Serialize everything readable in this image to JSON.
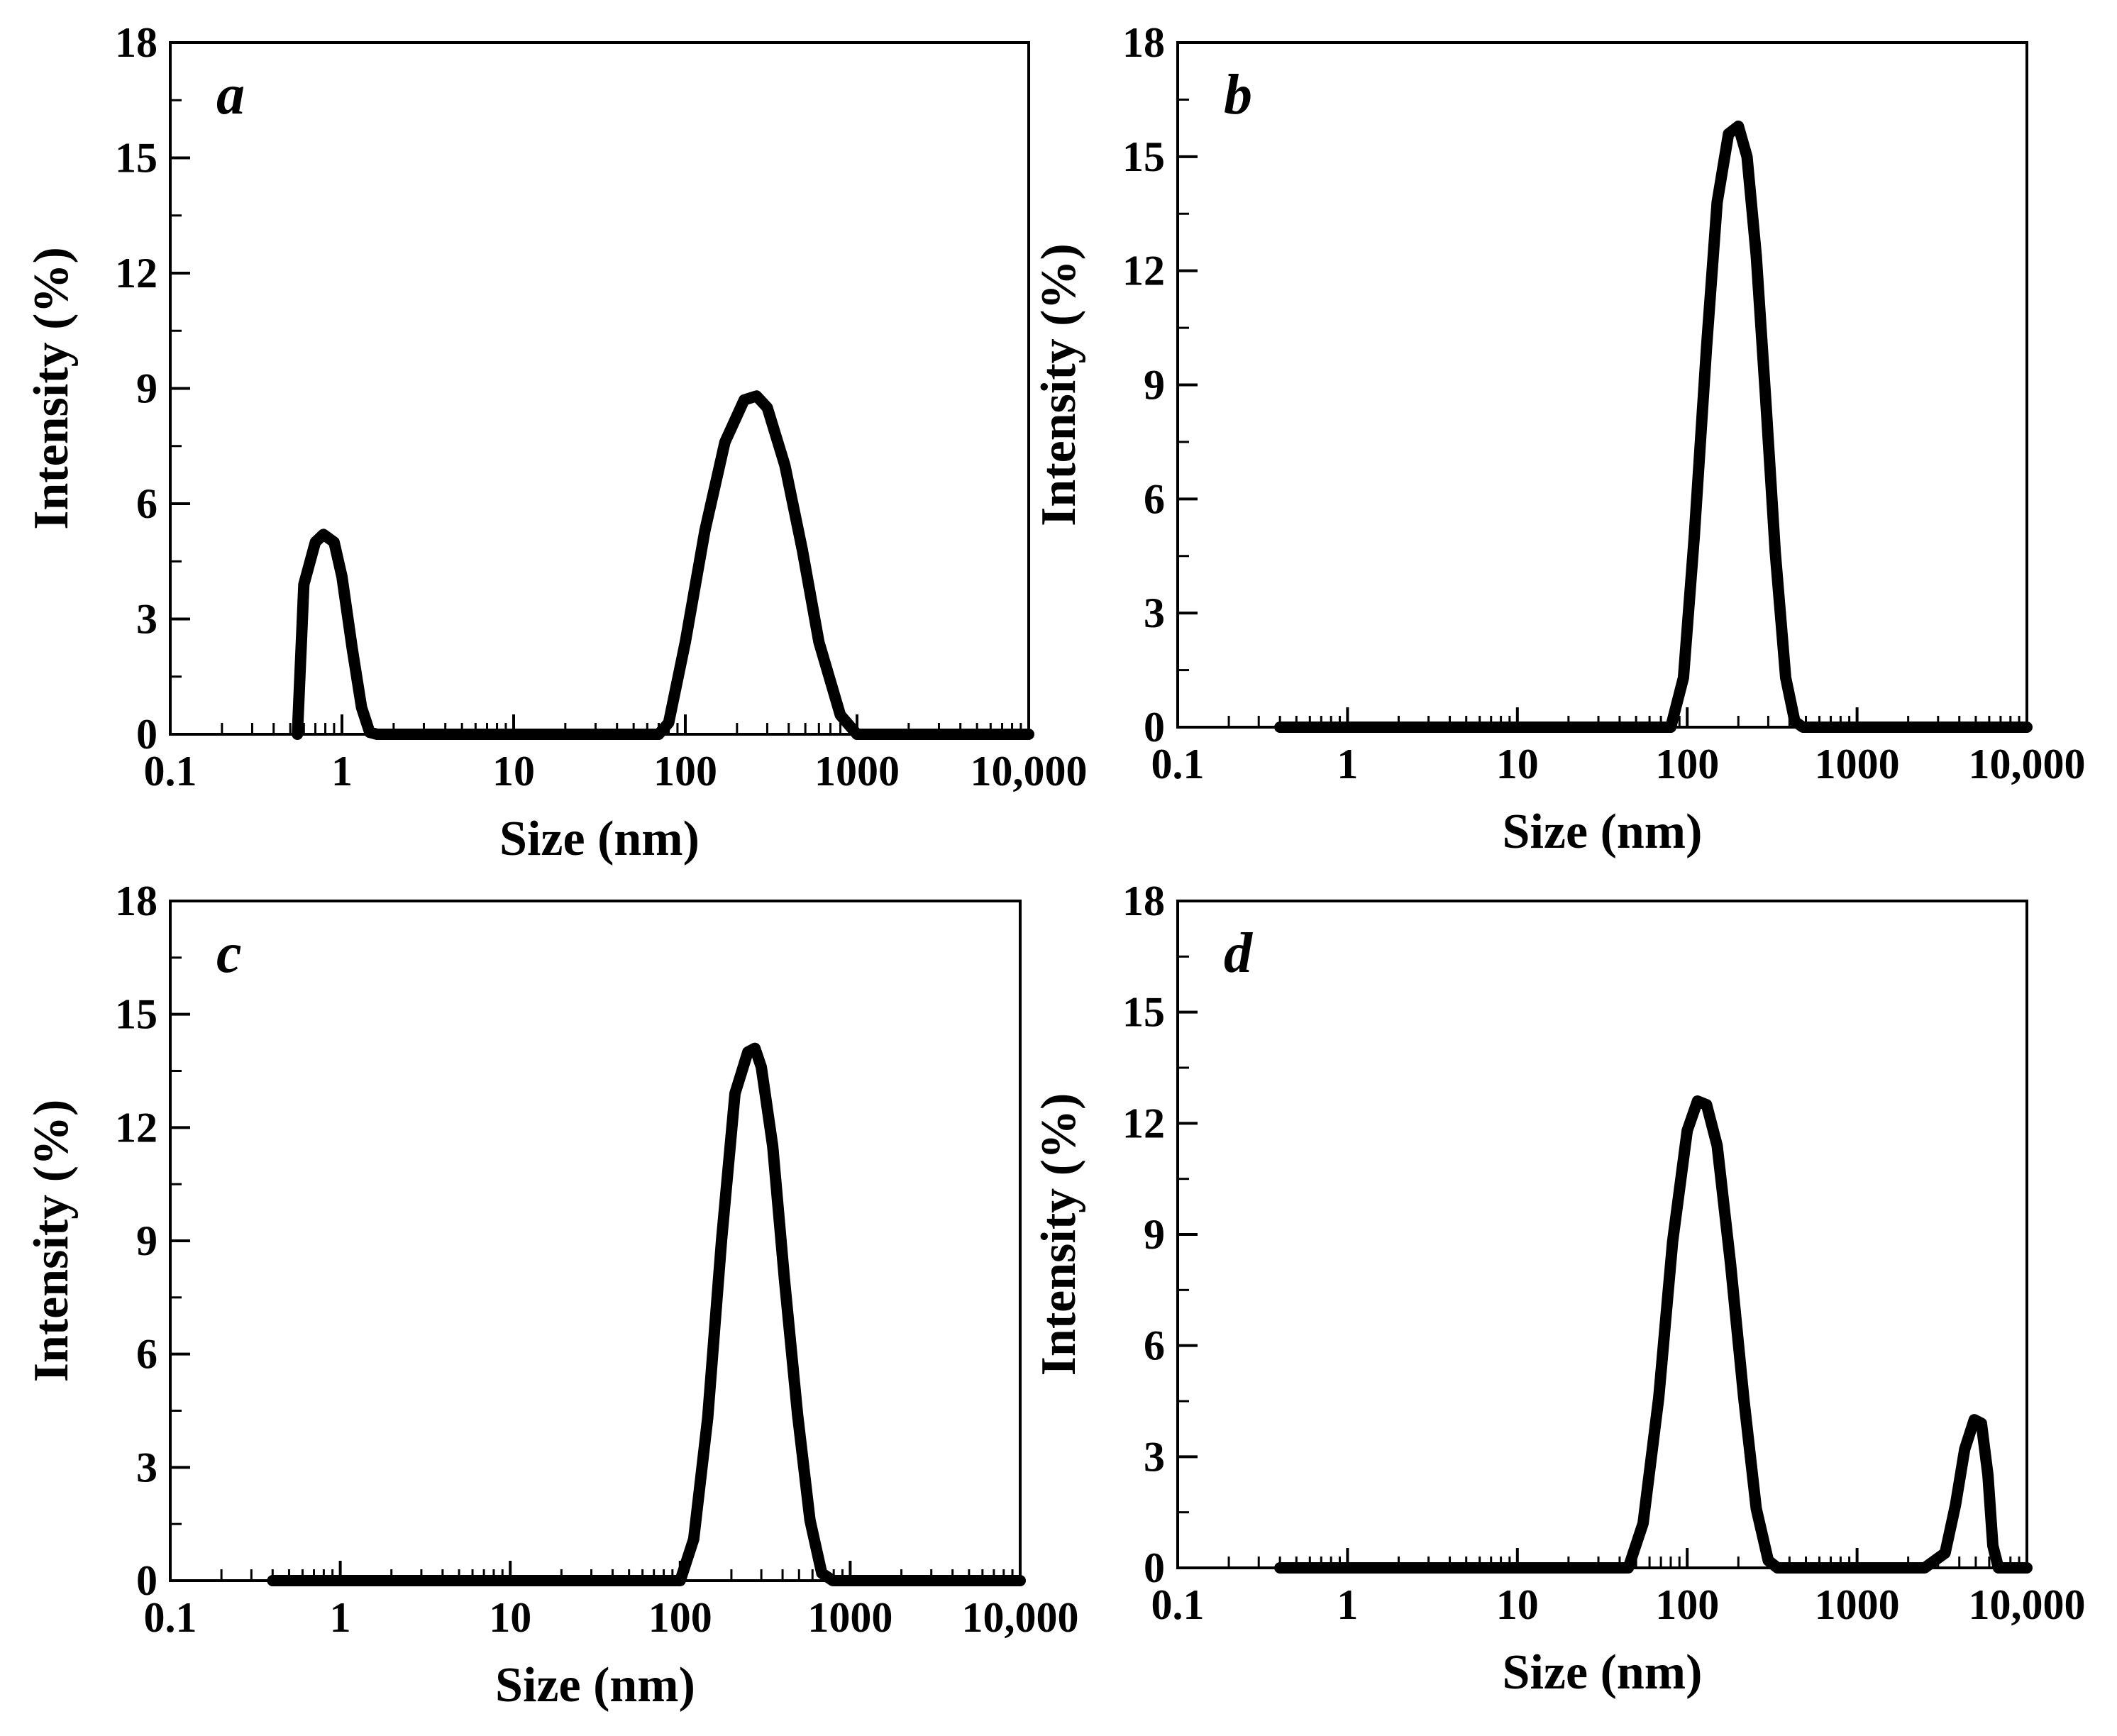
{
  "figure": {
    "line_color": "#000000",
    "background": "#ffffff"
  },
  "chart_data": [
    {
      "type": "line",
      "panel_label": "a",
      "xlabel": "Size (nm)",
      "ylabel": "Intensity (%)",
      "xscale": "log",
      "xlim": [
        0.1,
        10000
      ],
      "ylim": [
        0,
        18
      ],
      "xticks": [
        0.1,
        1,
        10,
        100,
        1000,
        10000
      ],
      "xtick_labels": [
        "0.1",
        "1",
        "10",
        "100",
        "1000",
        "10,000"
      ],
      "yticks": [
        0,
        3,
        6,
        9,
        12,
        15,
        18
      ],
      "ytick_labels": [
        "0",
        "3",
        "6",
        "9",
        "12",
        "15",
        "18"
      ],
      "series": [
        {
          "name": "a",
          "x": [
            0.55,
            0.6,
            0.7,
            0.78,
            0.9,
            1.0,
            1.15,
            1.3,
            1.45,
            1.6,
            3,
            10,
            40,
            70,
            80,
            100,
            130,
            170,
            220,
            260,
            300,
            380,
            480,
            600,
            800,
            1000,
            1200,
            10000
          ],
          "y": [
            0,
            3.9,
            5.0,
            5.2,
            5.0,
            4.1,
            2.2,
            0.7,
            0.05,
            0,
            0,
            0,
            0,
            0,
            0.3,
            2.4,
            5.3,
            7.6,
            8.7,
            8.8,
            8.5,
            7.0,
            4.8,
            2.4,
            0.5,
            0,
            0,
            0
          ]
        }
      ]
    },
    {
      "type": "line",
      "panel_label": "b",
      "xlabel": "Size (nm)",
      "ylabel": "Intensity (%)",
      "xscale": "log",
      "xlim": [
        0.1,
        10000
      ],
      "ylim": [
        0,
        18
      ],
      "xticks": [
        0.1,
        1,
        10,
        100,
        1000,
        10000
      ],
      "xtick_labels": [
        "0.1",
        "1",
        "10",
        "100",
        "1000",
        "10,000"
      ],
      "yticks": [
        0,
        3,
        6,
        9,
        12,
        15,
        18
      ],
      "ytick_labels": [
        "0",
        "3",
        "6",
        "9",
        "12",
        "15",
        "18"
      ],
      "series": [
        {
          "name": "b",
          "x": [
            0.4,
            1,
            10,
            50,
            80,
            95,
            110,
            130,
            150,
            175,
            200,
            225,
            255,
            290,
            330,
            380,
            430,
            480,
            520,
            10000
          ],
          "y": [
            0,
            0,
            0,
            0,
            0,
            1.3,
            5.0,
            10.0,
            13.8,
            15.6,
            15.8,
            15.0,
            12.4,
            8.6,
            4.6,
            1.3,
            0.15,
            0,
            0,
            0
          ]
        }
      ]
    },
    {
      "type": "line",
      "panel_label": "c",
      "xlabel": "Size (nm)",
      "ylabel": "Intensity (%)",
      "xscale": "log",
      "xlim": [
        0.1,
        10000
      ],
      "ylim": [
        0,
        18
      ],
      "xticks": [
        0.1,
        1,
        10,
        100,
        1000,
        10000
      ],
      "xtick_labels": [
        "0.1",
        "1",
        "10",
        "100",
        "1000",
        "10,000"
      ],
      "yticks": [
        0,
        3,
        6,
        9,
        12,
        15,
        18
      ],
      "ytick_labels": [
        "0",
        "3",
        "6",
        "9",
        "12",
        "15",
        "18"
      ],
      "series": [
        {
          "name": "c",
          "x": [
            0.4,
            1,
            10,
            50,
            100,
            120,
            145,
            175,
            210,
            250,
            275,
            300,
            350,
            410,
            490,
            580,
            680,
            790,
            900,
            10000
          ],
          "y": [
            0,
            0,
            0,
            0,
            0,
            1.1,
            4.3,
            9.0,
            12.9,
            14.0,
            14.1,
            13.6,
            11.5,
            8.0,
            4.4,
            1.6,
            0.2,
            0,
            0,
            0
          ]
        }
      ]
    },
    {
      "type": "line",
      "panel_label": "d",
      "xlabel": "Size (nm)",
      "ylabel": "Intensity (%)",
      "xscale": "log",
      "xlim": [
        0.1,
        10000
      ],
      "ylim": [
        0,
        18
      ],
      "xticks": [
        0.1,
        1,
        10,
        100,
        1000,
        10000
      ],
      "xtick_labels": [
        "0.1",
        "1",
        "10",
        "100",
        "1000",
        "10,000"
      ],
      "yticks": [
        0,
        3,
        6,
        9,
        12,
        15,
        18
      ],
      "ytick_labels": [
        "0",
        "3",
        "6",
        "9",
        "12",
        "15",
        "18"
      ],
      "series": [
        {
          "name": "d",
          "x": [
            0.4,
            1,
            10,
            30,
            45,
            55,
            68,
            82,
            100,
            115,
            130,
            150,
            180,
            215,
            255,
            300,
            340,
            1000,
            2500,
            3300,
            3800,
            4300,
            4900,
            5400,
            5900,
            6300,
            6800,
            10000
          ],
          "y": [
            0,
            0,
            0,
            0,
            0,
            1.2,
            4.6,
            8.8,
            11.8,
            12.6,
            12.5,
            11.4,
            8.2,
            4.6,
            1.6,
            0.2,
            0,
            0,
            0,
            0.4,
            1.7,
            3.2,
            4.0,
            3.9,
            2.5,
            0.6,
            0,
            0
          ]
        }
      ]
    }
  ]
}
